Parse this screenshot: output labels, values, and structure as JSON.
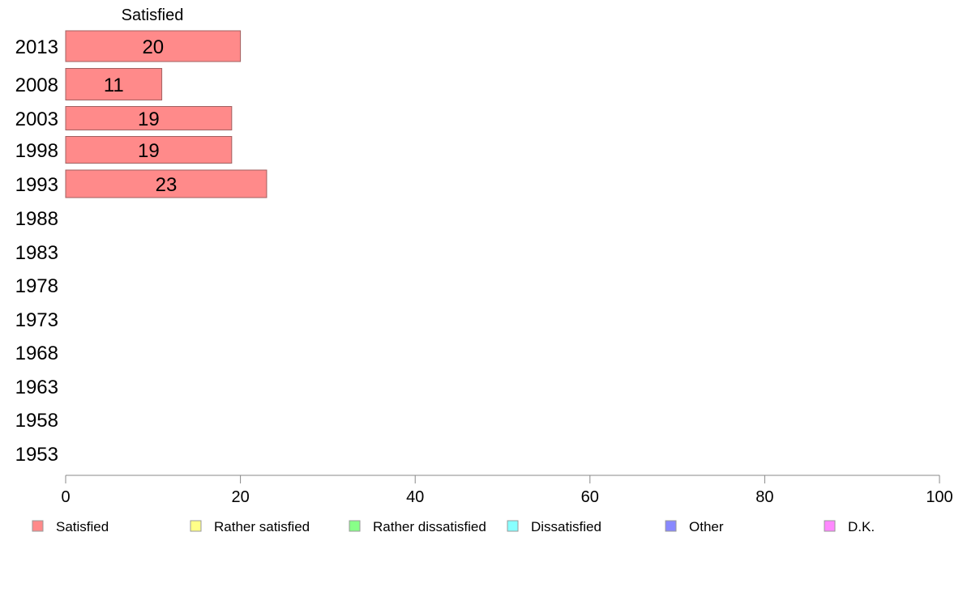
{
  "chart_data": {
    "type": "bar",
    "orientation": "horizontal",
    "stacked": true,
    "categories": [
      "2013",
      "2008",
      "2003",
      "1998",
      "1993",
      "1988",
      "1983",
      "1978",
      "1973",
      "1968",
      "1963",
      "1958",
      "1953"
    ],
    "series": [
      {
        "name": "Satisfied",
        "color": "#ff8a8a",
        "values": [
          20,
          11,
          19,
          19,
          23,
          null,
          null,
          null,
          null,
          null,
          null,
          null,
          null
        ]
      },
      {
        "name": "Rather satisfied",
        "color": "#ffff88",
        "values": [
          null,
          null,
          null,
          null,
          null,
          null,
          null,
          null,
          null,
          null,
          null,
          null,
          null
        ]
      },
      {
        "name": "Rather dissatisfied",
        "color": "#88ff88",
        "values": [
          null,
          null,
          null,
          null,
          null,
          null,
          null,
          null,
          null,
          null,
          null,
          null,
          null
        ]
      },
      {
        "name": "Dissatisfied",
        "color": "#88ffff",
        "values": [
          null,
          null,
          null,
          null,
          null,
          null,
          null,
          null,
          null,
          null,
          null,
          null,
          null
        ]
      },
      {
        "name": "Other",
        "color": "#8888ff",
        "values": [
          null,
          null,
          null,
          null,
          null,
          null,
          null,
          null,
          null,
          null,
          null,
          null,
          null
        ]
      },
      {
        "name": "D.K.",
        "color": "#ff88ff",
        "values": [
          null,
          null,
          null,
          null,
          null,
          null,
          null,
          null,
          null,
          null,
          null,
          null,
          null
        ]
      }
    ],
    "column_header": "Satisfied",
    "xlim": [
      0,
      100
    ],
    "xticks": [
      "0",
      "20",
      "40",
      "60",
      "80",
      "100"
    ],
    "grid": false,
    "legend_position": "bottom"
  }
}
